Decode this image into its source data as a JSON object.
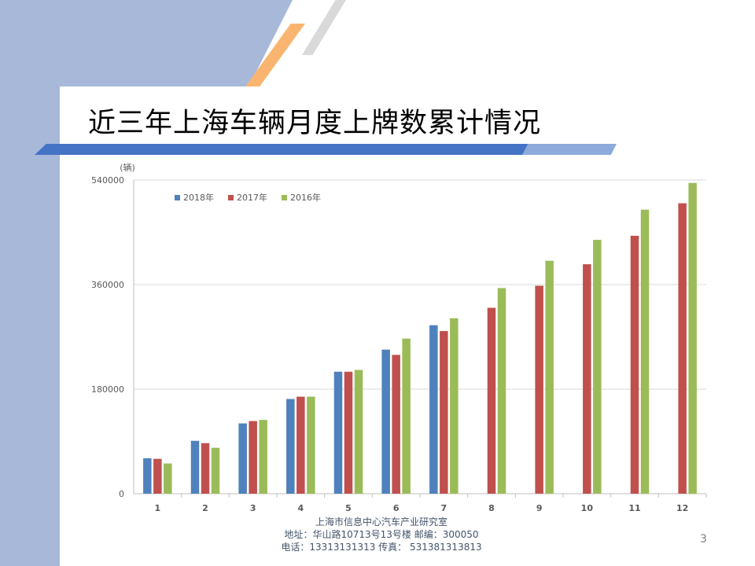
{
  "slide": {
    "title": "近三年上海车辆月度上牌数累计情况",
    "footer": {
      "org": "上海市信息中心汽车产业研究室",
      "address": "地址：华山路10713号13号楼    邮编：300050",
      "phone": "电话：13313131313   传真：  531381313813"
    },
    "page_number": "3"
  },
  "chart_data": {
    "type": "bar",
    "title": "",
    "ylabel": "(辆)",
    "xlabel": "",
    "categories": [
      "1",
      "2",
      "3",
      "4",
      "5",
      "6",
      "7",
      "8",
      "9",
      "10",
      "11",
      "12"
    ],
    "ylim": [
      0,
      540000
    ],
    "yticks": [
      "0",
      "180000",
      "360000",
      "540000"
    ],
    "grid": true,
    "legend": "top-left",
    "series": [
      {
        "name": "2018年",
        "color": "#4f81bd",
        "values": [
          61000,
          91000,
          121000,
          163000,
          210000,
          248000,
          290000,
          null,
          null,
          null,
          null,
          null
        ]
      },
      {
        "name": "2017年",
        "color": "#c0504d",
        "values": [
          60000,
          87000,
          125000,
          167000,
          210000,
          239000,
          280000,
          320000,
          358000,
          395000,
          444000,
          500000
        ]
      },
      {
        "name": "2016年",
        "color": "#9bbb59",
        "values": [
          52000,
          79000,
          127000,
          167000,
          213000,
          267000,
          302000,
          354000,
          401000,
          437000,
          489000,
          535000
        ]
      }
    ]
  }
}
